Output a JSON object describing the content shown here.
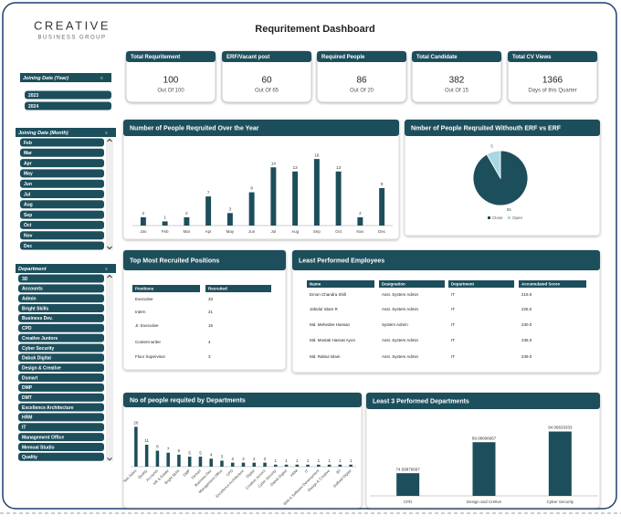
{
  "header": {
    "logo": "CREATIVE",
    "logo_sub": "BUSINESS GROUP",
    "title": "Requritement Dashboard"
  },
  "kpis": [
    {
      "title": "Total Requritement",
      "value": 100,
      "sub": "Out Of 100"
    },
    {
      "title": "ERF/Vacant post",
      "value": 60,
      "sub": "Out Of 65"
    },
    {
      "title": "Required People",
      "value": 86,
      "sub": "Out Of 20"
    },
    {
      "title": "Total Candidate",
      "value": 382,
      "sub": "Out Of 15"
    },
    {
      "title": "Total CV Views",
      "value": 1366,
      "sub": "Days of this Quarter"
    }
  ],
  "slicers": [
    {
      "title": "Joining Date (Year)",
      "items": [
        "2023",
        "2024"
      ]
    },
    {
      "title": "Joining Date (Month)",
      "items": [
        "Feb",
        "Mar",
        "Apr",
        "May",
        "Jun",
        "Jul",
        "Aug",
        "Sep",
        "Oct",
        "Nov",
        "Dec"
      ]
    },
    {
      "title": "Department",
      "items": [
        "3D",
        "Accounts",
        "Admin",
        "Bright Skills",
        "Business Dev.",
        "CPD",
        "Creative Juniors",
        "Cyber Security",
        "Dabuk Digital",
        "Design & Creative",
        "Dsmart",
        "DMP",
        "DMT",
        "Excellence Architecture",
        "HRM",
        "IT",
        "Management Office",
        "Memoal Studio",
        "Quality"
      ]
    }
  ],
  "tables": [
    {
      "title": "Top Most Recruited Positions",
      "columns": [
        "Positions",
        "Recruited"
      ],
      "rows": [
        [
          "Executive",
          "33"
        ],
        [
          "Intern",
          "21"
        ],
        [
          "Jr. Executive",
          "16"
        ],
        [
          "Content writer",
          "4"
        ],
        [
          "Floor Supervisor",
          "3"
        ]
      ]
    },
    {
      "title": "Least Performed Employees",
      "columns": [
        "Name",
        "Designation",
        "Department",
        "Accumulated Score"
      ],
      "rows": [
        [
          "Emon Chandra Shill",
          "Asst. System Admin",
          "IT",
          "219.0"
        ],
        [
          "Jahidul Islam R",
          "Asst. System Admin",
          "IT",
          "226.0"
        ],
        [
          "Md. Mehedee Hassan",
          "System Admin",
          "IT",
          "230.0"
        ],
        [
          "Md. Mostak Hasnat Ayon",
          "Asst. System Admin",
          "IT",
          "236.0"
        ],
        [
          "Md. Rabiul Islam",
          "Asst. System Admin",
          "IT",
          "239.0"
        ]
      ]
    }
  ],
  "chart_data": [
    {
      "type": "bar",
      "title": "Number of People Reqruited Over the Year",
      "categories": [
        "Jan",
        "Feb",
        "Mar",
        "Apr",
        "May",
        "Jun",
        "Jul",
        "Aug",
        "Sep",
        "Oct",
        "Nov",
        "Dec"
      ],
      "values": [
        2,
        1,
        2,
        7,
        3,
        8,
        14,
        13,
        16,
        13,
        2,
        9
      ],
      "color": "#1d4e5c",
      "ylim": [
        0,
        18
      ]
    },
    {
      "type": "pie",
      "title": "Nmber of People Reqruited Withouth ERF vs ERF",
      "categories": [
        "Close",
        "Open"
      ],
      "values": [
        55,
        5
      ],
      "colors": [
        "#1d4e5c",
        "#a9d8e4"
      ]
    },
    {
      "type": "bar",
      "title": "No of people requited by Departments",
      "categories": [
        "Tele Sales",
        "Quality",
        "Accounts",
        "HR & Estate",
        "Bright Skills",
        "DMP",
        "Dsmart",
        "Business Dev",
        "Management Office",
        "CPD",
        "Excellence Architecture",
        "Digital",
        "Creative Juniors",
        "Cyber Security",
        "Dabuk Digital",
        "HRM",
        "IT",
        "Web & Software Development",
        "Design & Creative",
        "3D",
        "Daffodil Digital"
      ],
      "values": [
        20,
        11,
        8,
        7,
        6,
        5,
        5,
        4,
        3,
        2,
        2,
        2,
        2,
        1,
        1,
        1,
        1,
        1,
        1,
        1,
        1
      ],
      "color": "#1d4e5c",
      "ylim": [
        0,
        22
      ]
    },
    {
      "type": "bar",
      "title": "Least 3 Performed Departments",
      "categories": [
        "CPD",
        "Design and Cretive",
        "Cyber Security"
      ],
      "values": [
        74.59876667,
        89.08066667,
        94.06633333
      ],
      "color": "#1d4e5c",
      "ylim": [
        64,
        96
      ]
    }
  ]
}
